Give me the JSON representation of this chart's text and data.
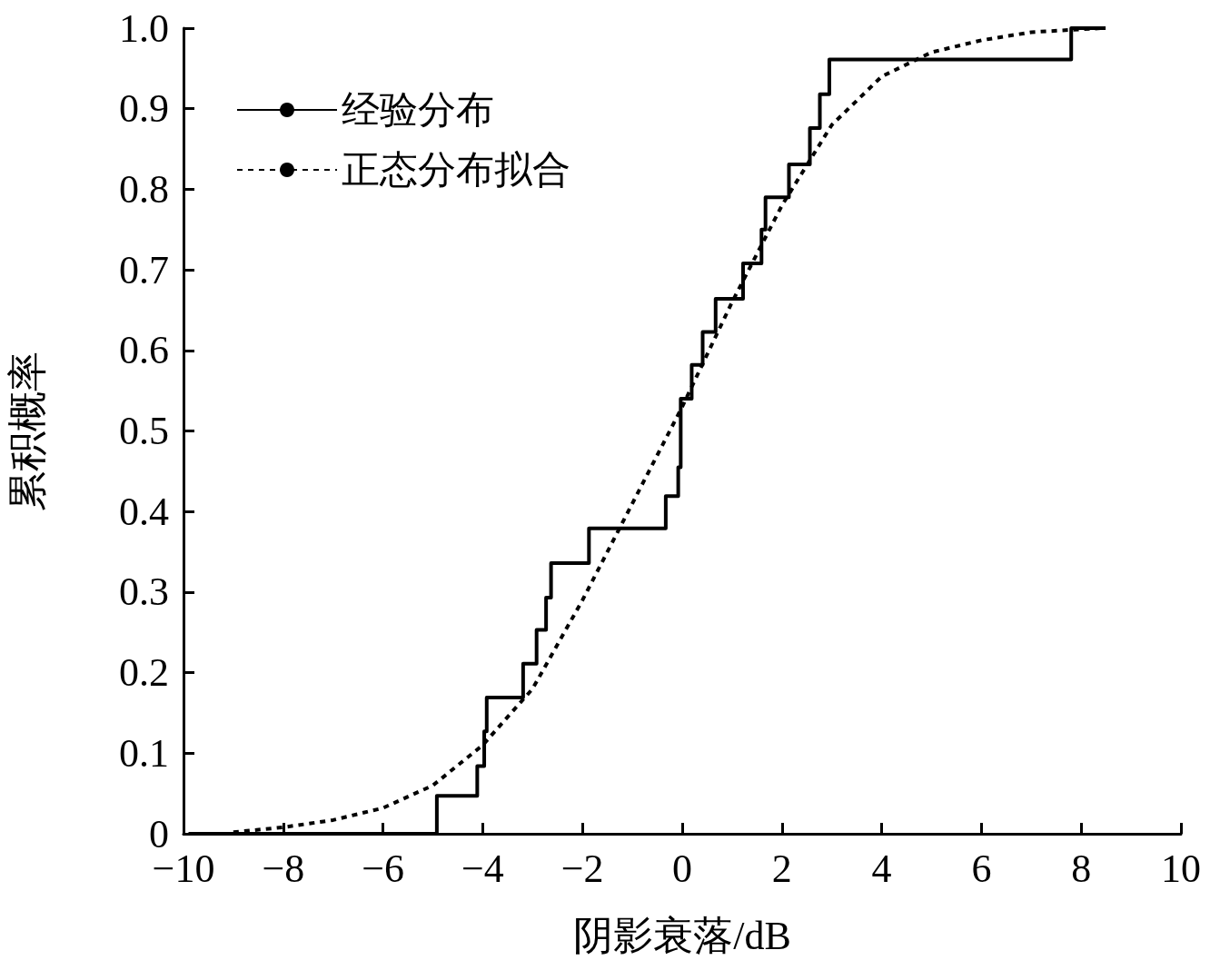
{
  "chart_data": {
    "type": "step",
    "xlabel": "阴影衰落/dB",
    "ylabel": "累积概率",
    "xlim": [
      -10,
      10
    ],
    "xticks": [
      {
        "value": -10,
        "label": "−10"
      },
      {
        "value": -8,
        "label": "−8"
      },
      {
        "value": -6,
        "label": "−6"
      },
      {
        "value": -4,
        "label": "−4"
      },
      {
        "value": -2,
        "label": "−2"
      },
      0,
      2,
      4,
      6,
      8,
      10
    ],
    "ylim": [
      0,
      1
    ],
    "yticks": [
      0,
      0.1,
      0.2,
      0.3,
      0.4,
      0.5,
      0.6,
      0.7,
      0.8,
      0.9,
      {
        "value": 1,
        "label": "1.0"
      }
    ],
    "grid": false,
    "legend": "top left",
    "marker": "none",
    "series": [
      {
        "name": "经验分布",
        "color": "#000000",
        "line_style": "solid",
        "x": [
          -9.9,
          -4.92,
          -4.11,
          -3.97,
          -3.92,
          -3.19,
          -2.92,
          -2.73,
          -2.63,
          -1.87,
          -0.33,
          -0.08,
          -0.03,
          0.19,
          0.41,
          0.67,
          1.22,
          1.59,
          1.67,
          2.14,
          2.56,
          2.76,
          2.95,
          7.8,
          8.49
        ],
        "values": [
          0,
          0.047,
          0.084,
          0.127,
          0.169,
          0.211,
          0.253,
          0.293,
          0.336,
          0.379,
          0.419,
          0.455,
          0.54,
          0.582,
          0.623,
          0.664,
          0.708,
          0.75,
          0.79,
          0.831,
          0.876,
          0.918,
          0.961,
          1.0,
          1.0
        ]
      },
      {
        "name": "正态分布拟合",
        "type": "line",
        "color": "#000000",
        "line_style": "dashed",
        "x": [
          -9,
          -8,
          -7,
          -6,
          -5,
          -4,
          -3,
          -2,
          -1,
          0,
          1,
          2,
          3,
          4,
          5,
          6,
          7,
          8.4
        ],
        "values": [
          0.002,
          0.008,
          0.017,
          0.032,
          0.06,
          0.11,
          0.18,
          0.29,
          0.41,
          0.53,
          0.66,
          0.78,
          0.88,
          0.94,
          0.97,
          0.985,
          0.995,
          1.0
        ]
      }
    ]
  }
}
